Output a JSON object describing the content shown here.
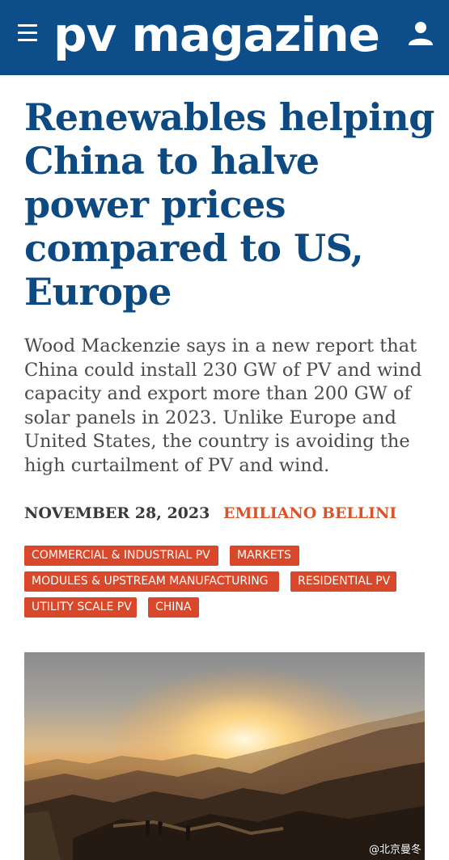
{
  "header": {
    "logo_text": "pv magazine",
    "menu_icon": "hamburger-menu-icon",
    "user_icon": "user-icon",
    "background_color": "#0c4d8a"
  },
  "article": {
    "title": "Renewables helping China to halve power prices compared to US, Europe",
    "summary": "Wood Mackenzie says in a new report that China could install 230 GW of PV and wind capacity and export more than 200 GW of solar panels in 2023. Unlike Europe and United States, the country is avoiding the high curtailment of PV and wind.",
    "date": "NOVEMBER 28, 2023",
    "author": "EMILIANO BELLINI",
    "tags": [
      "COMMERCIAL & INDUSTRIAL PV",
      "MARKETS",
      "MODULES & UPSTREAM MANUFACTURING",
      "RESIDENTIAL PV",
      "UTILITY SCALE PV",
      "CHINA"
    ],
    "title_color": "#0d4a82",
    "accent_color": "#d9482a"
  },
  "watermark": {
    "text": "@北京曼冬"
  }
}
